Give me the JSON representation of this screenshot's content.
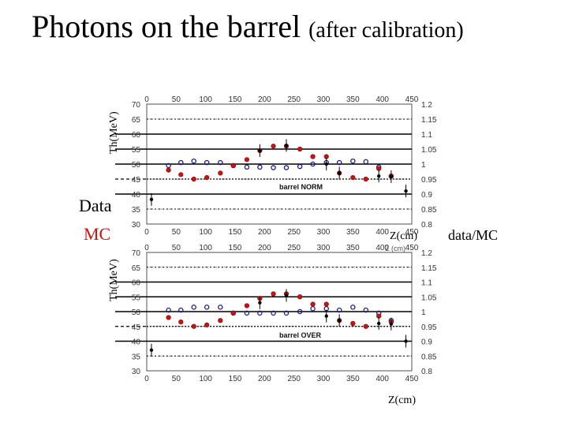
{
  "page": {
    "title": "Photons on the barrel",
    "subtitle": "(after calibration)",
    "y_axis_label": "Th(MeV)",
    "x_axis_label": "Z(cm)",
    "right_axis_label": "data/MC",
    "legend_data": "Data",
    "legend_mc": "MC",
    "overlay_x_text": "Z (cm)"
  },
  "colors": {
    "data": "#1a1a8c",
    "mc": "#cc1111",
    "grid": "#000000"
  },
  "chart_data": [
    {
      "type": "scatter",
      "label": "barrel NORM",
      "xlim": [
        0,
        450
      ],
      "ylim": [
        30,
        70
      ],
      "xticks": [
        0,
        50,
        100,
        150,
        200,
        250,
        300,
        350,
        400,
        450
      ],
      "yticks": [
        30,
        35,
        40,
        45,
        50,
        55,
        60,
        65,
        70
      ],
      "right_ylim": [
        0.8,
        1.2
      ],
      "right_yticks": [
        "0.8",
        "0.85",
        "0.9",
        "0.95",
        "1",
        "1.05",
        "1.1",
        "1.15",
        "1.2"
      ],
      "series": [
        {
          "name": "Data",
          "marker": "open-circle",
          "x": [
            37,
            58,
            80,
            102,
            125,
            147,
            170,
            192,
            215,
            237,
            260,
            282,
            305,
            327,
            350,
            372,
            394,
            415
          ],
          "y": [
            49.5,
            50.5,
            51,
            50.5,
            50.5,
            49.5,
            49,
            49,
            48.8,
            48.8,
            49.2,
            50,
            50.5,
            50.5,
            51,
            50.8,
            49,
            46
          ]
        },
        {
          "name": "MC",
          "marker": "filled-circle",
          "x": [
            37,
            58,
            80,
            102,
            125,
            147,
            170,
            192,
            215,
            237,
            260,
            282,
            305,
            327,
            350,
            372,
            394,
            415
          ],
          "y": [
            48,
            46.5,
            45,
            45.5,
            47,
            49.5,
            51.5,
            54.5,
            56,
            56,
            55,
            52.5,
            52.5,
            47,
            45.5,
            45,
            48.5,
            46
          ]
        },
        {
          "name": "data/MC",
          "marker": "dot-errorbar",
          "x": [
            8,
            192,
            237,
            305,
            327,
            394,
            415,
            440
          ],
          "y": [
            0.882,
            1.045,
            1.062,
            1.0,
            0.97,
            0.96,
            0.958,
            0.91
          ]
        }
      ]
    },
    {
      "type": "scatter",
      "label": "barrel OVER",
      "xlim": [
        0,
        450
      ],
      "ylim": [
        30,
        70
      ],
      "xticks": [
        0,
        50,
        100,
        150,
        200,
        250,
        300,
        350,
        400,
        450
      ],
      "yticks": [
        30,
        35,
        40,
        45,
        50,
        55,
        60,
        65,
        70
      ],
      "right_ylim": [
        0.8,
        1.2
      ],
      "right_yticks": [
        "0.8",
        "0.85",
        "0.9",
        "0.95",
        "1",
        "1.05",
        "1.1",
        "1.15",
        "1.2"
      ],
      "series": [
        {
          "name": "Data",
          "marker": "open-circle",
          "x": [
            37,
            58,
            80,
            102,
            125,
            147,
            170,
            192,
            215,
            237,
            260,
            282,
            305,
            327,
            350,
            372,
            394,
            415
          ],
          "y": [
            50.5,
            50.5,
            51.5,
            51.5,
            51.5,
            49.5,
            49.5,
            49.5,
            49.5,
            49.5,
            50,
            51,
            51,
            50.5,
            51.5,
            50.5,
            49.5,
            47
          ]
        },
        {
          "name": "MC",
          "marker": "filled-circle",
          "x": [
            37,
            58,
            80,
            102,
            125,
            147,
            170,
            192,
            215,
            237,
            260,
            282,
            305,
            327,
            350,
            372,
            394,
            415
          ],
          "y": [
            48,
            46.5,
            45,
            45.5,
            47,
            49.5,
            52,
            54.5,
            56,
            56,
            55,
            52.5,
            52.5,
            47,
            46,
            45,
            48.5,
            46.5
          ]
        },
        {
          "name": "data/MC",
          "marker": "dot-errorbar",
          "x": [
            8,
            192,
            237,
            305,
            327,
            394,
            415,
            440
          ],
          "y": [
            0.87,
            1.03,
            1.055,
            0.985,
            0.97,
            0.96,
            0.958,
            0.9
          ]
        }
      ]
    }
  ]
}
